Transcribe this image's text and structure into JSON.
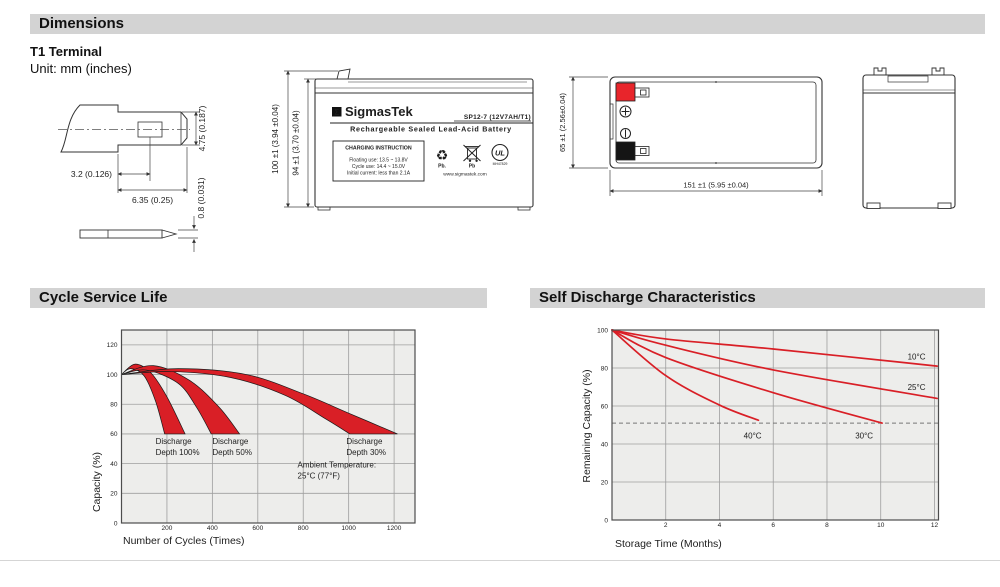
{
  "sections": {
    "dimensions": "Dimensions",
    "cycle": "Cycle Service Life",
    "self_discharge": "Self Discharge Characteristics"
  },
  "dimensions_block": {
    "terminal_type": "T1 Terminal",
    "unit_note": "Unit: mm (inches)"
  },
  "terminal_drawing": {
    "dim_tab_height": "4.75 (0.187)",
    "dim_hole_offset": "3.2 (0.126)",
    "dim_tab_length": "6.35 (0.25)",
    "dim_thickness": "0.8 (0.031)"
  },
  "front_view": {
    "dim_total_height": "100 ±1 (3.94 ±0.04)",
    "dim_case_height": "94 ±1 (3.70 ±0.04)",
    "label": {
      "logo_glyph": "Σ",
      "brand": "SigmasTek",
      "model": "SP12-7 (12V7AH/T1)",
      "subtitle": "Rechargeable Sealed Lead-Acid Battery",
      "charging_title": "CHARGING INSTRUCTION",
      "charging_lines": [
        "Floating use: 13.5 ~ 13.8V",
        "Cycle use: 14.4 ~ 15.0V",
        "Initial current: less than 2.1A"
      ],
      "recycle_glyph": "♻",
      "recycle_label": "Pb.",
      "bin_label": "Pb",
      "ul_mark": "UL",
      "ul_number": "MH47829",
      "website": "www.sigmastek.com"
    }
  },
  "top_view": {
    "dim_width": "65 ±1 (2.56±0.04)",
    "dim_length": "151 ±1 (5.95 ±0.04)"
  },
  "colors": {
    "accent_red": "#d91f26",
    "terminal_red": "#e8252b",
    "terminal_black": "#151515",
    "header_gray": "#d3d3d3"
  },
  "chart_data": [
    {
      "type": "area",
      "title": "Cycle Service Life",
      "xlabel": "Number of Cycles (Times)",
      "ylabel": "Capacity (%)",
      "xlim": [
        0,
        1292
      ],
      "ylim": [
        0,
        130
      ],
      "x_ticks": [
        200,
        400,
        600,
        800,
        1000,
        1200
      ],
      "y_ticks": [
        0,
        20,
        40,
        60,
        80,
        100,
        120
      ],
      "grid": true,
      "series": [
        {
          "name": "Discharge Depth 100%",
          "upper": [
            [
              0,
              100
            ],
            [
              60,
              107
            ],
            [
              130,
              101
            ],
            [
              200,
              85
            ],
            [
              280,
              60
            ]
          ],
          "lower": [
            [
              0,
              100
            ],
            [
              40,
              104
            ],
            [
              100,
              99
            ],
            [
              150,
              82
            ],
            [
              190,
              60
            ]
          ]
        },
        {
          "name": "Discharge Depth 50%",
          "upper": [
            [
              0,
              100
            ],
            [
              140,
              106
            ],
            [
              300,
              96
            ],
            [
              430,
              78
            ],
            [
              520,
              60
            ]
          ],
          "lower": [
            [
              0,
              100
            ],
            [
              110,
              103
            ],
            [
              250,
              94
            ],
            [
              330,
              78
            ],
            [
              395,
              60
            ]
          ]
        },
        {
          "name": "Discharge Depth 30%",
          "upper": [
            [
              0,
              100
            ],
            [
              250,
              104
            ],
            [
              550,
              100
            ],
            [
              800,
              87
            ],
            [
              1000,
              74
            ],
            [
              1215,
              60
            ]
          ],
          "lower": [
            [
              0,
              100
            ],
            [
              220,
              102
            ],
            [
              480,
              98
            ],
            [
              720,
              86
            ],
            [
              900,
              70
            ],
            [
              1005,
              60
            ]
          ]
        }
      ],
      "annotations": [
        {
          "lines": [
            "Discharge",
            "Depth 100%"
          ],
          "x": 150,
          "y": 56
        },
        {
          "lines": [
            "Discharge",
            "Depth 50%"
          ],
          "x": 400,
          "y": 56
        },
        {
          "lines": [
            "Discharge",
            "Depth 30%"
          ],
          "x": 990,
          "y": 56
        },
        {
          "lines": [
            "Ambient Temperature:",
            "25°C (77°F)"
          ],
          "x": 775,
          "y": 40
        }
      ]
    },
    {
      "type": "line",
      "title": "Self Discharge Characteristics",
      "xlabel": "Storage Time (Months)",
      "ylabel": "Remaining Capacity (%)",
      "xlim": [
        0,
        12.15
      ],
      "ylim": [
        0,
        100
      ],
      "x_ticks": [
        2,
        4,
        6,
        8,
        10,
        12
      ],
      "y_ticks": [
        0,
        20,
        40,
        60,
        80,
        100
      ],
      "reference_line_y": 51,
      "series": [
        {
          "name": "10°C",
          "points": [
            [
              0,
              100
            ],
            [
              2,
              95.3
            ],
            [
              6,
              90
            ],
            [
              12.1,
              81
            ]
          ],
          "label_x": 11.0,
          "label_y": 84.5
        },
        {
          "name": "25°C",
          "points": [
            [
              0,
              100
            ],
            [
              2,
              92
            ],
            [
              6,
              79
            ],
            [
              12.1,
              64
            ]
          ],
          "label_x": 11.0,
          "label_y": 68.5
        },
        {
          "name": "30°C",
          "points": [
            [
              0,
              100
            ],
            [
              2,
              85.5
            ],
            [
              6,
              67
            ],
            [
              10.05,
              51
            ]
          ],
          "label_x": 9.05,
          "label_y": 43
        },
        {
          "name": "40°C",
          "points": [
            [
              0,
              100
            ],
            [
              2,
              76
            ],
            [
              4,
              60.5
            ],
            [
              5.45,
              52.5
            ]
          ],
          "label_x": 4.9,
          "label_y": 43
        }
      ]
    }
  ]
}
